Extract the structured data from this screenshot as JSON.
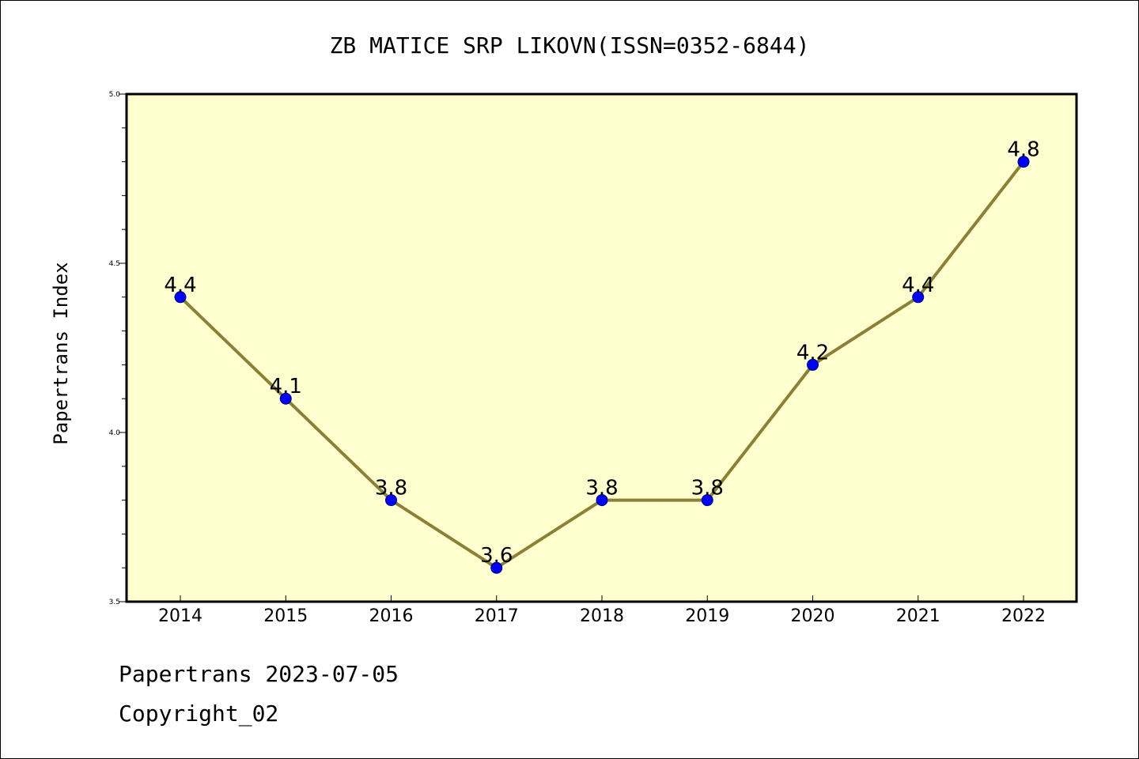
{
  "chart_data": {
    "type": "line",
    "title": "ZB MATICE SRP LIKOVN(ISSN=0352-6844)",
    "xlabel": "",
    "ylabel": "Papertrans Index",
    "categories": [
      "2014",
      "2015",
      "2016",
      "2017",
      "2018",
      "2019",
      "2020",
      "2021",
      "2022"
    ],
    "series": [
      {
        "values": [
          4.4,
          4.1,
          3.8,
          3.6,
          3.8,
          3.8,
          4.2,
          4.4,
          4.8
        ],
        "labels": [
          "4.4",
          "4.1",
          "3.8",
          "3.6",
          "3.8",
          "3.8",
          "4.2",
          "4.4",
          "4.8"
        ]
      }
    ],
    "ylim": [
      3.5,
      5.0
    ],
    "yticks": [
      "3.5",
      "4.0",
      "4.5",
      "5.0"
    ],
    "grid": false,
    "legend": "none",
    "colors": {
      "plot_background": "#ffffd0",
      "line": "#8b8035",
      "marker": "#0000ff"
    }
  },
  "footer": {
    "line1": "Papertrans 2023-07-05",
    "line2": "Copyright_02"
  }
}
